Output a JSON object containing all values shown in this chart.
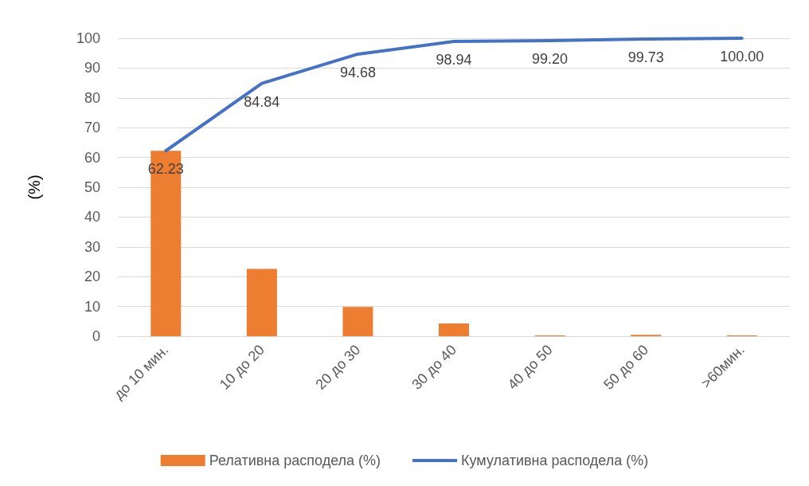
{
  "chart_data": {
    "type": "bar",
    "ylabel": "(%)",
    "categories": [
      "до 10 мин.",
      "10 до 20",
      "20 до 30",
      "30 до 40",
      "40 до 50",
      "50 до 60",
      ">60мин."
    ],
    "series": [
      {
        "name": "Релативна расподела (%)",
        "color": "#ed7d31",
        "values": [
          62.2,
          22.6,
          9.8,
          4.3,
          0.3,
          0.5,
          0.3
        ]
      },
      {
        "name": "Кумулативна расподела (%)",
        "type": "line",
        "color": "#4472c4",
        "values": [
          62.23,
          84.84,
          94.68,
          98.94,
          99.2,
          99.73,
          100
        ],
        "value_labels": [
          "62.23",
          "84.84",
          "94.68",
          "98.94",
          "99.20",
          "99.73",
          "100.00"
        ],
        "marker": "none",
        "line_style": "solid"
      }
    ],
    "ylim": [
      0,
      100
    ],
    "yticks": [
      0,
      10,
      20,
      30,
      40,
      50,
      60,
      70,
      80,
      90,
      100
    ],
    "grid": "y",
    "legend": "bottom"
  }
}
